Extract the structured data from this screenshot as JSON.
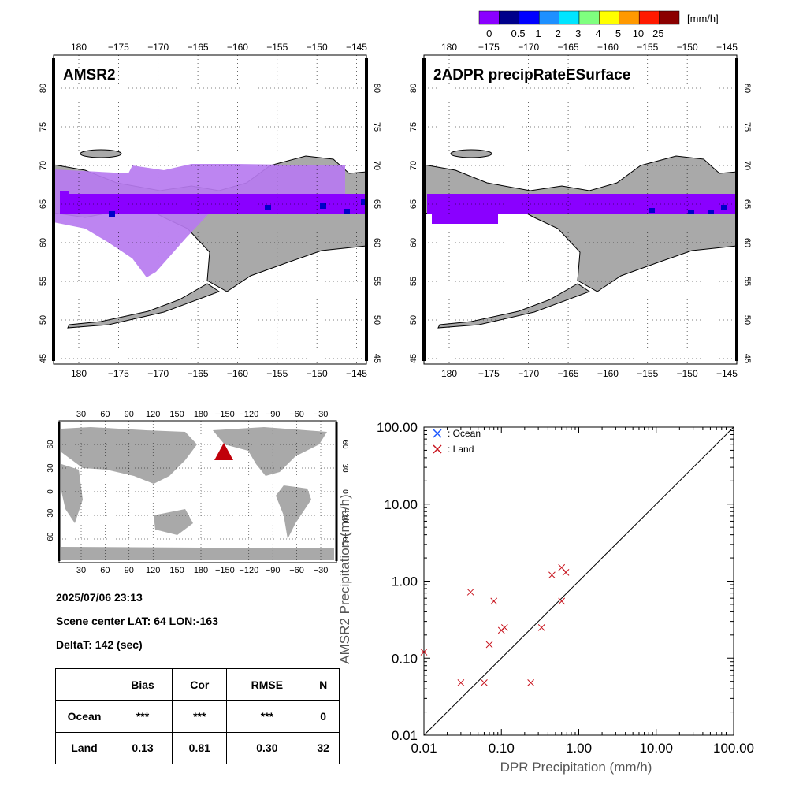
{
  "colorbar": {
    "unit": "[mm/h]",
    "colors": [
      "#8a00ff",
      "#00008b",
      "#0000ff",
      "#1e90ff",
      "#00e5ff",
      "#7fff7f",
      "#ffff00",
      "#ff9900",
      "#ff1a00",
      "#8b0000"
    ],
    "labels": [
      "0",
      "0.5",
      "1",
      "2",
      "3",
      "4",
      "5",
      "10",
      "25"
    ]
  },
  "maps": {
    "lon_ticks": [
      "180",
      "−175",
      "−170",
      "−165",
      "−160",
      "−155",
      "−150",
      "−145"
    ],
    "lat_ticks": [
      "80",
      "75",
      "70",
      "65",
      "60",
      "55",
      "50",
      "45"
    ],
    "left_title": "AMSR2",
    "right_title": "2ADPR precipRateESurface"
  },
  "world_map": {
    "lon_ticks": [
      "30",
      "60",
      "90",
      "120",
      "150",
      "180",
      "−150",
      "−120",
      "−90",
      "−60",
      "−30"
    ],
    "lat_ticks": [
      "60",
      "30",
      "0",
      "−30",
      "−60"
    ]
  },
  "info": {
    "datetime": "2025/07/06 23:13",
    "scene_center": "Scene center LAT: 64   LON:-163",
    "delta_t": "DeltaT:  142 (sec)"
  },
  "stats_table": {
    "headers": [
      "Bias",
      "Cor",
      "RMSE",
      "N"
    ],
    "rows": [
      {
        "label": "Ocean",
        "values": [
          "***",
          "***",
          "***",
          "0"
        ]
      },
      {
        "label": "Land",
        "values": [
          "0.13",
          "0.81",
          "0.30",
          "32"
        ]
      }
    ]
  },
  "chart_data": {
    "type": "scatter",
    "xlabel": "DPR Precipitation (mm/h)",
    "ylabel": "AMSR2 Precipitation (mm/h)",
    "xlim": [
      0.01,
      100
    ],
    "ylim": [
      0.01,
      100
    ],
    "log_x": true,
    "log_y": true,
    "x_tick_labels": [
      "0.01",
      "0.10",
      "1.00",
      "10.00",
      "100.00"
    ],
    "y_tick_labels": [
      "0.01",
      "0.10",
      "1.00",
      "10.00",
      "100.00"
    ],
    "diagonal_line": true,
    "legend_position": "top-left",
    "series": [
      {
        "name": ": Ocean",
        "color": "#1a56ff",
        "points": []
      },
      {
        "name": ": Land",
        "color": "#c8141e",
        "points": [
          [
            0.01,
            0.12
          ],
          [
            0.03,
            0.048
          ],
          [
            0.04,
            0.72
          ],
          [
            0.06,
            0.048
          ],
          [
            0.07,
            0.15
          ],
          [
            0.08,
            0.55
          ],
          [
            0.1,
            0.23
          ],
          [
            0.11,
            0.25
          ],
          [
            0.24,
            0.048
          ],
          [
            0.33,
            0.25
          ],
          [
            0.45,
            1.2
          ],
          [
            0.6,
            1.5
          ],
          [
            0.6,
            0.55
          ],
          [
            0.68,
            1.3
          ]
        ]
      }
    ]
  }
}
